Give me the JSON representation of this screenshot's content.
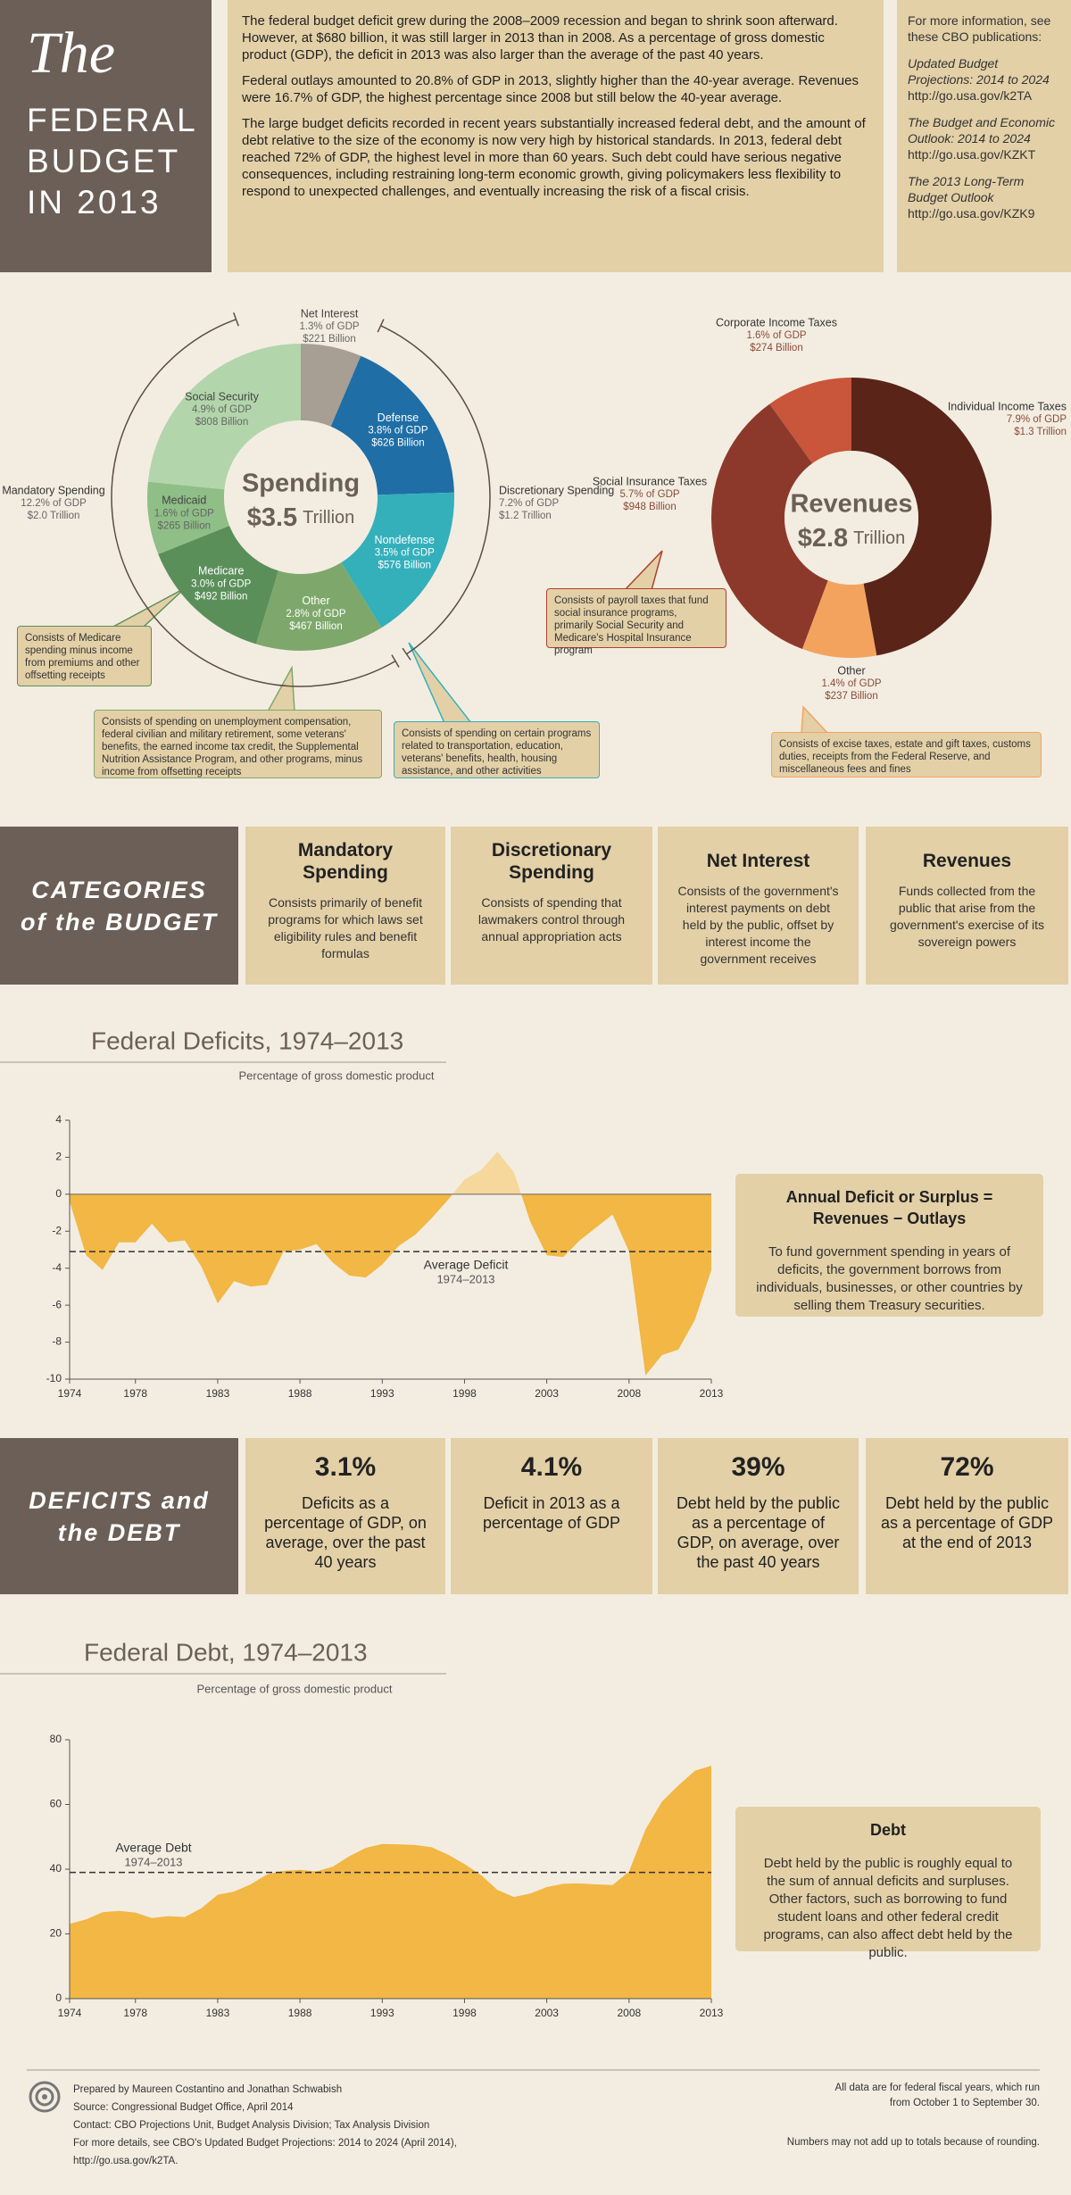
{
  "header": {
    "title_script": "The",
    "title": "FEDERAL BUDGET IN 2013",
    "paragraphs": [
      "The federal budget deficit grew during the 2008–2009 recession and began to shrink soon afterward. However, at $680 billion, it was still larger in 2013 than in 2008. As a percentage of gross domestic product (GDP), the deficit in 2013 was also larger than the average of the past 40 years.",
      "Federal outlays amounted to 20.8% of GDP in 2013, slightly higher than the 40-year average. Revenues were 16.7% of GDP, the highest percentage since 2008 but still below the 40-year average.",
      "The large budget deficits recorded in recent years substantially increased federal debt, and the amount of debt relative to the size of the economy is now very high by historical standards. In 2013, federal debt reached 72% of GDP, the highest level in more than 60 years. Such debt could have serious negative consequences, including restraining long-term economic growth, giving policymakers less flexibility to respond to unexpected challenges, and eventually increasing the risk of a fiscal crisis."
    ],
    "sidebar": {
      "intro": "For more information, see these CBO publications:",
      "publications": [
        {
          "title": "Updated Budget Projections: 2014 to 2024",
          "url": "http://go.usa.gov/k2TA"
        },
        {
          "title": "The Budget and Economic Outlook: 2014 to 2024",
          "url": "http://go.usa.gov/KZKT"
        },
        {
          "title": "The 2013 Long-Term Budget Outlook",
          "url": "http://go.usa.gov/KZK9"
        }
      ]
    }
  },
  "chart_data": [
    {
      "type": "donut",
      "title": "Spending",
      "center_value": "$3.5",
      "center_unit": "Trillion",
      "categories": [
        "Net Interest",
        "Defense",
        "Nondefense",
        "Other",
        "Medicare",
        "Medicaid",
        "Social Security"
      ],
      "values": [
        221,
        626,
        576,
        467,
        492,
        265,
        808
      ],
      "value_labels": [
        "$221 Billion",
        "$626 Billion",
        "$576 Billion",
        "$467 Billion",
        "$492 Billion",
        "$265 Billion",
        "$808 Billion"
      ],
      "gdp_labels": [
        "1.3% of GDP",
        "3.8% of GDP",
        "3.5% of GDP",
        "2.8% of GDP",
        "3.0% of GDP",
        "1.6% of GDP",
        "4.9% of GDP"
      ],
      "colors": [
        "#a79e94",
        "#1f6ea6",
        "#34b0bb",
        "#7ea86b",
        "#5b8f5a",
        "#8fbe86",
        "#b3d5ab"
      ],
      "groups": [
        {
          "name": "Mandatory Spending",
          "gdp_label": "12.2% of GDP",
          "value_label": "$2.0 Trillion"
        },
        {
          "name": "Discretionary Spending",
          "gdp_label": "7.2% of GDP",
          "value_label": "$1.2 Trillion"
        }
      ],
      "callouts": [
        "Consists of Medicare spending minus income from premiums and other offsetting receipts",
        "Consists of spending on unemployment compensation, federal civilian and military retirement, some veterans' benefits, the earned income tax credit, the Supplemental Nutrition Assistance Program, and other programs, minus income from offsetting receipts",
        "Consists of spending on certain programs related to transportation, education, veterans' benefits, health, housing assistance, and other activities"
      ]
    },
    {
      "type": "donut",
      "title": "Revenues",
      "center_value": "$2.8",
      "center_unit": "Trillion",
      "categories": [
        "Individual Income Taxes",
        "Other",
        "Social Insurance Taxes",
        "Corporate Income Taxes"
      ],
      "values": [
        1300,
        237,
        948,
        274
      ],
      "value_labels": [
        "$1.3 Trillion",
        "$237 Billion",
        "$948 Billion",
        "$274 Billion"
      ],
      "gdp_labels": [
        "7.9% of GDP",
        "1.4% of GDP",
        "5.7% of GDP",
        "1.6% of GDP"
      ],
      "colors": [
        "#5a2419",
        "#f4a35f",
        "#8c392b",
        "#c9553a"
      ],
      "callouts": [
        "Consists of payroll taxes that fund social insurance programs, primarily Social Security and Medicare's Hospital Insurance program",
        "Consists of excise taxes, estate and gift taxes, customs duties, receipts from the Federal Reserve, and miscellaneous fees and fines"
      ]
    },
    {
      "type": "area",
      "title": "Federal Deficits, 1974–2013",
      "subtitle": "Percentage of gross domestic product",
      "x": [
        1974,
        1975,
        1976,
        1977,
        1978,
        1979,
        1980,
        1981,
        1982,
        1983,
        1984,
        1985,
        1986,
        1987,
        1988,
        1989,
        1990,
        1991,
        1992,
        1993,
        1994,
        1995,
        1996,
        1997,
        1998,
        1999,
        2000,
        2001,
        2002,
        2003,
        2004,
        2005,
        2006,
        2007,
        2008,
        2009,
        2010,
        2011,
        2012,
        2013
      ],
      "values": [
        -0.4,
        -3.3,
        -4.1,
        -2.6,
        -2.6,
        -1.6,
        -2.6,
        -2.5,
        -3.9,
        -5.9,
        -4.7,
        -5.0,
        -4.9,
        -3.1,
        -3.0,
        -2.7,
        -3.7,
        -4.4,
        -4.5,
        -3.8,
        -2.8,
        -2.2,
        -1.3,
        -0.3,
        0.8,
        1.3,
        2.3,
        1.2,
        -1.5,
        -3.3,
        -3.4,
        -2.5,
        -1.8,
        -1.1,
        -3.1,
        -9.8,
        -8.7,
        -8.4,
        -6.8,
        -4.1
      ],
      "color": "#f2b744",
      "positive_color": "#f6d79c",
      "xlim": [
        1974,
        2013
      ],
      "xticks": [
        1974,
        1978,
        1983,
        1988,
        1993,
        1998,
        2003,
        2008,
        2013
      ],
      "ylim": [
        -10,
        4
      ],
      "yticks": [
        -10,
        -8,
        -6,
        -4,
        -2,
        0,
        2,
        4
      ],
      "average": {
        "value": -3.1,
        "label": "Average Deficit",
        "sublabel": "1974–2013"
      },
      "note": {
        "title": "Annual Deficit or Surplus = Revenues − Outlays",
        "text": "To fund government spending in years of deficits, the government borrows from individuals, businesses, or other countries by selling them Treasury securities."
      }
    },
    {
      "type": "area",
      "title": "Federal Debt, 1974–2013",
      "subtitle": "Percentage of gross domestic product",
      "x": [
        1974,
        1975,
        1976,
        1977,
        1978,
        1979,
        1980,
        1981,
        1982,
        1983,
        1984,
        1985,
        1986,
        1987,
        1988,
        1989,
        1990,
        1991,
        1992,
        1993,
        1994,
        1995,
        1996,
        1997,
        1998,
        1999,
        2000,
        2001,
        2002,
        2003,
        2004,
        2005,
        2006,
        2007,
        2008,
        2009,
        2010,
        2011,
        2012,
        2013
      ],
      "values": [
        23.1,
        24.5,
        26.7,
        27.1,
        26.6,
        24.9,
        25.5,
        25.2,
        27.9,
        32.1,
        33.1,
        35.3,
        38.4,
        39.5,
        39.8,
        39.3,
        40.8,
        44.0,
        46.6,
        47.8,
        47.7,
        47.5,
        46.8,
        44.5,
        41.6,
        38.2,
        33.6,
        31.4,
        32.5,
        34.5,
        35.5,
        35.6,
        35.3,
        35.1,
        39.3,
        52.3,
        60.9,
        65.9,
        70.4,
        72.0
      ],
      "color": "#f2b744",
      "xlim": [
        1974,
        2013
      ],
      "xticks": [
        1974,
        1978,
        1983,
        1988,
        1993,
        1998,
        2003,
        2008,
        2013
      ],
      "ylim": [
        0,
        80
      ],
      "yticks": [
        0,
        20,
        40,
        60,
        80
      ],
      "average": {
        "value": 39,
        "label": "Average Debt",
        "sublabel": "1974–2013"
      },
      "note": {
        "title": "Debt",
        "text": "Debt held by the public is roughly equal to the sum of annual deficits and surpluses. Other factors, such as borrowing to fund student loans and other federal credit programs, can also affect debt held by the public."
      }
    }
  ],
  "categories_section": {
    "title": "CATEGORIES of the BUDGET",
    "items": [
      {
        "title": "Mandatory Spending",
        "text": "Consists primarily of benefit programs for which laws set eligibility rules and benefit formulas"
      },
      {
        "title": "Discretionary Spending",
        "text": "Consists of spending that lawmakers control through annual appropriation acts"
      },
      {
        "title": "Net Interest",
        "text": "Consists of the government's interest payments on debt held by the public, offset by interest income the government receives"
      },
      {
        "title": "Revenues",
        "text": "Funds collected from the public that arise from the government's exercise of its sovereign powers"
      }
    ]
  },
  "stats_section": {
    "title": "DEFICITS and the DEBT",
    "items": [
      {
        "value": "3.1%",
        "text": "Deficits as a percentage of GDP, on average, over the past 40 years"
      },
      {
        "value": "4.1%",
        "text": "Deficit in 2013 as a percentage of GDP"
      },
      {
        "value": "39%",
        "text": "Debt held by the public as a percentage of GDP, on average, over the past 40 years"
      },
      {
        "value": "72%",
        "text": "Debt held by the public as a percentage of GDP at the end of 2013"
      }
    ]
  },
  "footer": {
    "credits": [
      "Prepared by Maureen Costantino and Jonathan Schwabish",
      "Source: Congressional Budget Office, April 2014",
      "Contact: CBO Projections Unit, Budget Analysis Division; Tax Analysis Division",
      "For more details, see CBO's Updated Budget Projections: 2014 to 2024 (April 2014), http://go.usa.gov/k2TA."
    ],
    "notes": [
      "All data are for federal fiscal years, which run from October 1 to September 30.",
      "Numbers may not add up to totals because of rounding."
    ]
  }
}
